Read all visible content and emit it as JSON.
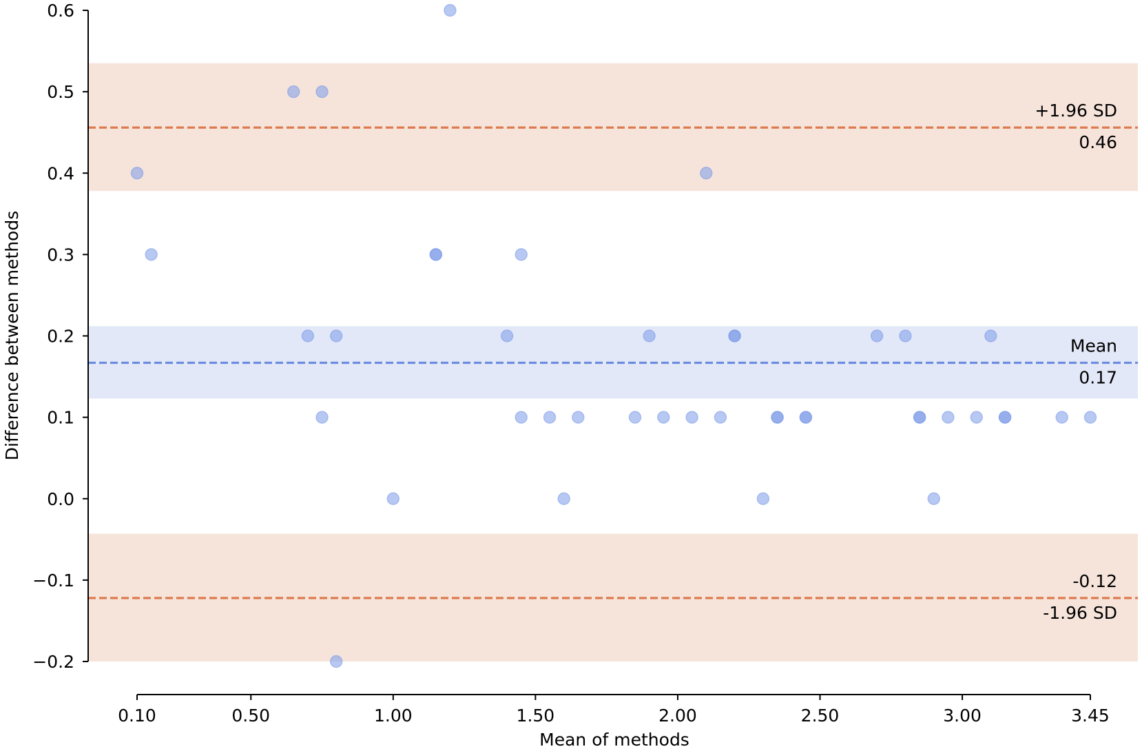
{
  "chart_data": {
    "type": "scatter",
    "title": "",
    "xlabel": "Mean of methods",
    "ylabel": "Difference between methods",
    "xlim": [
      -0.06,
      3.45
    ],
    "ylim": [
      -0.2,
      0.6
    ],
    "x_ticks": [
      0.1,
      0.5,
      1.0,
      1.5,
      2.0,
      2.5,
      3.0,
      3.45
    ],
    "x_tick_labels": [
      "0.10",
      "0.50",
      "1.00",
      "1.50",
      "2.00",
      "2.50",
      "3.00",
      "3.45"
    ],
    "y_ticks": [
      0.6,
      0.5,
      0.4,
      0.3,
      0.2,
      0.1,
      0.0,
      -0.1,
      -0.2
    ],
    "y_tick_labels": [
      "0.6",
      "0.5",
      "0.4",
      "0.3",
      "0.2",
      "0.1",
      "0.0",
      "−0.1",
      "−0.2"
    ],
    "grid": false,
    "mean_line": {
      "value": 0.167,
      "ci": [
        0.123,
        0.212
      ],
      "label": "Mean",
      "value_label": "0.17"
    },
    "upper_loa": {
      "value": 0.456,
      "ci": [
        0.378,
        0.535
      ],
      "label": "+1.96 SD",
      "value_label": "0.46"
    },
    "lower_loa": {
      "value": -0.122,
      "ci": [
        -0.2,
        -0.043
      ],
      "label": "-1.96 SD",
      "value_label": "-0.12"
    },
    "points": [
      {
        "x": 0.1,
        "y": 0.4
      },
      {
        "x": 0.15,
        "y": 0.3
      },
      {
        "x": 0.65,
        "y": 0.5
      },
      {
        "x": 0.75,
        "y": 0.5
      },
      {
        "x": 0.7,
        "y": 0.2
      },
      {
        "x": 0.8,
        "y": 0.2
      },
      {
        "x": 0.75,
        "y": 0.1
      },
      {
        "x": 0.8,
        "y": -0.2
      },
      {
        "x": 1.0,
        "y": 0.0
      },
      {
        "x": 1.15,
        "y": 0.3
      },
      {
        "x": 1.15,
        "y": 0.3
      },
      {
        "x": 1.2,
        "y": 0.6
      },
      {
        "x": 1.4,
        "y": 0.2
      },
      {
        "x": 1.45,
        "y": 0.3
      },
      {
        "x": 1.45,
        "y": 0.1
      },
      {
        "x": 1.55,
        "y": 0.1
      },
      {
        "x": 1.6,
        "y": 0.0
      },
      {
        "x": 1.65,
        "y": 0.1
      },
      {
        "x": 1.85,
        "y": 0.1
      },
      {
        "x": 1.9,
        "y": 0.2
      },
      {
        "x": 1.95,
        "y": 0.1
      },
      {
        "x": 2.05,
        "y": 0.1
      },
      {
        "x": 2.1,
        "y": 0.4
      },
      {
        "x": 2.15,
        "y": 0.1
      },
      {
        "x": 2.2,
        "y": 0.2
      },
      {
        "x": 2.2,
        "y": 0.2
      },
      {
        "x": 2.3,
        "y": 0.0
      },
      {
        "x": 2.35,
        "y": 0.1
      },
      {
        "x": 2.35,
        "y": 0.1
      },
      {
        "x": 2.45,
        "y": 0.1
      },
      {
        "x": 2.45,
        "y": 0.1
      },
      {
        "x": 2.7,
        "y": 0.2
      },
      {
        "x": 2.8,
        "y": 0.2
      },
      {
        "x": 2.85,
        "y": 0.1
      },
      {
        "x": 2.85,
        "y": 0.1
      },
      {
        "x": 2.9,
        "y": 0.0
      },
      {
        "x": 2.95,
        "y": 0.1
      },
      {
        "x": 3.05,
        "y": 0.1
      },
      {
        "x": 3.1,
        "y": 0.2
      },
      {
        "x": 3.15,
        "y": 0.1
      },
      {
        "x": 3.15,
        "y": 0.1
      },
      {
        "x": 3.35,
        "y": 0.1
      },
      {
        "x": 3.45,
        "y": 0.1
      }
    ],
    "colors": {
      "points": "#7b9be8",
      "mean_line": "#6b8ce0",
      "mean_band": "#e3e8f8",
      "loa_line": "#dd7a4e",
      "loa_band": "#f6e4db",
      "axis": "#000000"
    }
  }
}
